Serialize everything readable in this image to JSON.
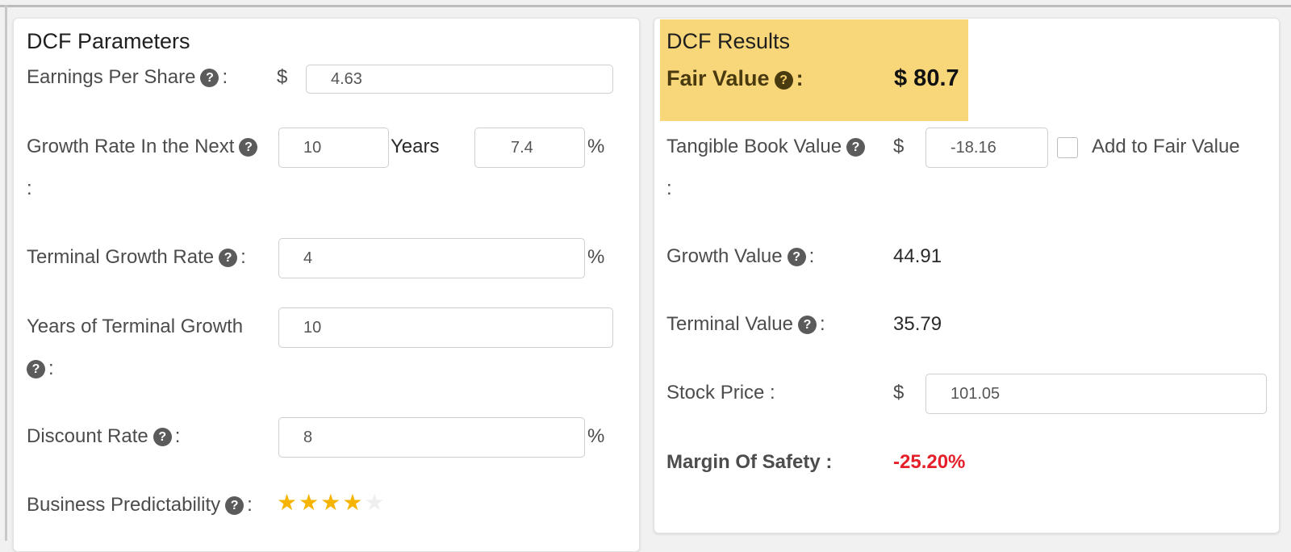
{
  "params": {
    "title": "DCF Parameters",
    "eps_label": "Earnings Per Share",
    "eps_unit": "$",
    "eps_value": "4.63",
    "growth_label": "Growth Rate In the Next",
    "growth_years_value": "10",
    "growth_years_unit": "Years",
    "growth_rate_value": "7.4",
    "growth_rate_unit": "%",
    "terminal_growth_label": "Terminal Growth Rate",
    "terminal_growth_value": "4",
    "terminal_growth_unit": "%",
    "years_terminal_label": "Years of Terminal Growth",
    "years_terminal_value": "10",
    "discount_label": "Discount Rate",
    "discount_value": "8",
    "discount_unit": "%",
    "predictability_label": "Business Predictability",
    "predictability_stars": 4,
    "predictability_max": 5,
    "colon": ":",
    "help_glyph": "?"
  },
  "results": {
    "title": "DCF Results",
    "fair_value_label": "Fair Value",
    "fair_value": "$ 80.7",
    "tbv_label": "Tangible Book Value",
    "tbv_unit": "$",
    "tbv_value": "-18.16",
    "add_to_fair_value_label": "Add to Fair Value",
    "add_to_fair_value_checked": false,
    "growth_value_label": "Growth Value",
    "growth_value": "44.91",
    "terminal_value_label": "Terminal Value",
    "terminal_value": "35.79",
    "stock_price_label": "Stock Price :",
    "stock_price_unit": "$",
    "stock_price_value": "101.05",
    "mos_label": "Margin Of Safety :",
    "mos_value": "-25.20%"
  },
  "colors": {
    "highlight": "#f8d77a",
    "negative": "#e5202b",
    "star": "#f5b400"
  },
  "icons": [
    "help-icon",
    "star-icon",
    "checkbox-icon"
  ]
}
